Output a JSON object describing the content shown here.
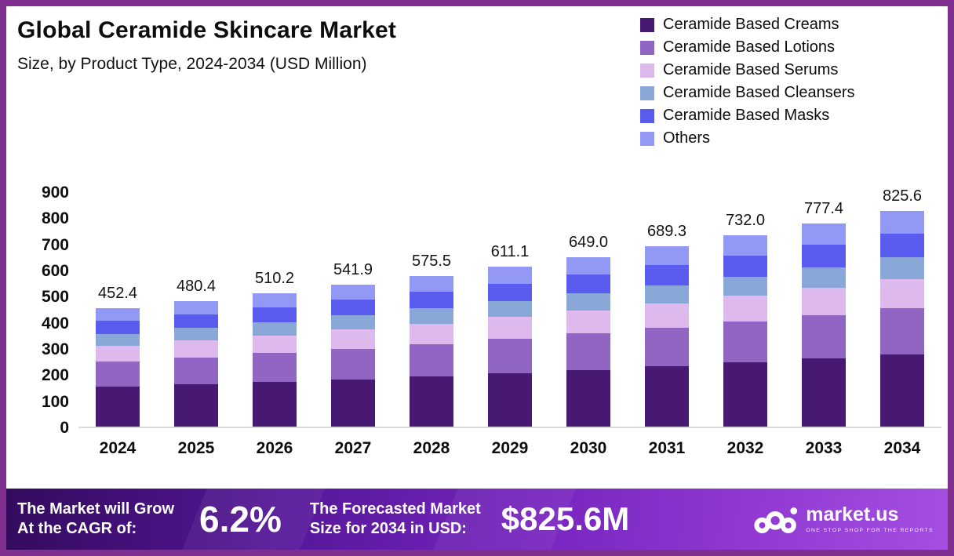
{
  "title": "Global Ceramide Skincare Market",
  "subtitle": "Size, by Product Type, 2024-2034 (USD Million)",
  "colors": {
    "border": "#7e2f90",
    "footer_gradient_start": "#330b5e",
    "footer_gradient_end": "#a44fe0",
    "baseline": "#d9d9d9"
  },
  "chart_data": {
    "type": "bar",
    "stacked": true,
    "title": "Global Ceramide Skincare Market",
    "subtitle": "Size, by Product Type, 2024-2034 (USD Million)",
    "xlabel": "",
    "ylabel": "USD Million",
    "ylim": [
      0,
      900
    ],
    "yticks": [
      0,
      100,
      200,
      300,
      400,
      500,
      600,
      700,
      800,
      900
    ],
    "grid": false,
    "legend_position": "top-right",
    "categories": [
      "2024",
      "2025",
      "2026",
      "2027",
      "2028",
      "2029",
      "2030",
      "2031",
      "2032",
      "2033",
      "2034"
    ],
    "totals": [
      452.4,
      480.4,
      510.2,
      541.9,
      575.5,
      611.1,
      649.0,
      689.3,
      732.0,
      777.4,
      825.6
    ],
    "series": [
      {
        "name": "Ceramide Based Creams",
        "color": "#481973",
        "values": [
          151.6,
          160.9,
          170.9,
          181.5,
          192.8,
          204.7,
          217.4,
          230.9,
          245.2,
          260.4,
          276.6
        ]
      },
      {
        "name": "Ceramide Based Lotions",
        "color": "#9065c4",
        "values": [
          97.3,
          103.3,
          109.7,
          116.5,
          123.7,
          131.4,
          139.5,
          148.2,
          157.4,
          167.1,
          177.5
        ]
      },
      {
        "name": "Ceramide Based Serums",
        "color": "#ddb9ee",
        "values": [
          61.1,
          64.9,
          68.9,
          73.2,
          77.7,
          82.5,
          87.6,
          93.1,
          98.8,
          104.9,
          111.5
        ]
      },
      {
        "name": "Ceramide Based Cleansers",
        "color": "#89a8d8",
        "values": [
          45.2,
          48.0,
          51.0,
          54.2,
          57.6,
          61.1,
          64.9,
          68.9,
          73.2,
          77.7,
          82.6
        ]
      },
      {
        "name": "Ceramide Based Masks",
        "color": "#5a5cf0",
        "values": [
          49.8,
          52.8,
          56.1,
          59.6,
          63.3,
          67.2,
          71.4,
          75.8,
          80.5,
          85.5,
          90.8
        ]
      },
      {
        "name": "Others",
        "color": "#9398f5",
        "values": [
          47.5,
          50.4,
          53.6,
          56.9,
          60.4,
          64.2,
          68.2,
          72.4,
          76.9,
          81.8,
          86.6
        ]
      }
    ]
  },
  "footer": {
    "cagr_label_line1": "The Market will Grow",
    "cagr_label_line2": "At the CAGR of:",
    "cagr_value": "6.2%",
    "forecast_label_line1": "The Forecasted Market",
    "forecast_label_line2": "Size for 2034 in USD:",
    "forecast_value": "$825.6M",
    "brand_name": "market.us",
    "brand_tagline": "ONE STOP SHOP FOR THE REPORTS"
  }
}
